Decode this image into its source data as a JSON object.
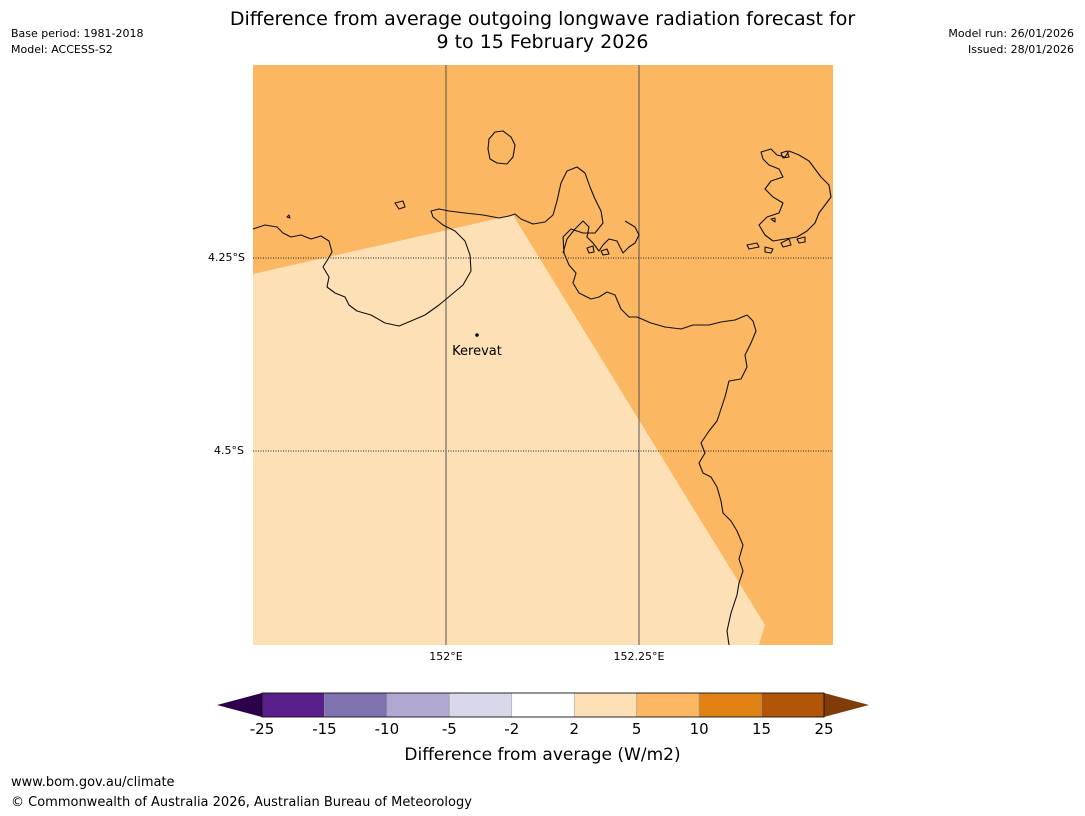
{
  "header": {
    "base_period": "Base period: 1981-2018",
    "model": "Model: ACCESS-S2",
    "model_run": "Model run: 26/01/2026",
    "issued": "Issued: 28/01/2026",
    "title_line1": "Difference from average outgoing longwave radiation forecast for",
    "title_line2": "9 to 15 February 2026"
  },
  "map": {
    "place_label": "Kerevat",
    "lat_labels": [
      "4.25°S",
      "4.5°S"
    ],
    "lon_labels": [
      "152°E",
      "152.25°E"
    ],
    "colors": {
      "band_5_10": "#fbb762",
      "band_2_5": "#fde0b5",
      "coast": "#111111",
      "grid": "#555555"
    }
  },
  "legend": {
    "title": "Difference from average (W/m2)",
    "ticks": [
      "-25",
      "-15",
      "-10",
      "-5",
      "-2",
      "2",
      "5",
      "10",
      "15",
      "25"
    ],
    "colors": [
      "#581f8a",
      "#8072b0",
      "#b1a8d2",
      "#d9d8eb",
      "#ffffff",
      "#fde0b5",
      "#fbb762",
      "#e08213",
      "#b15608"
    ],
    "under_color": "#2d004b",
    "over_color": "#7f3b08"
  },
  "footer": {
    "url": "www.bom.gov.au/climate",
    "copyright": "© Commonwealth of Australia 2026, Australian Bureau of Meteorology"
  }
}
